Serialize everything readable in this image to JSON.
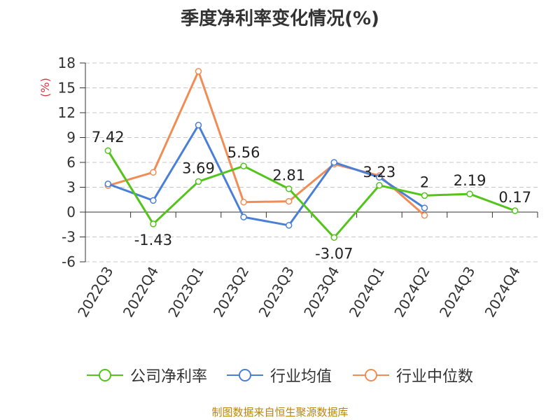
{
  "title": "季度净利率变化情况(%)",
  "source": "制图数据来自恒生聚源数据库",
  "chart_data": {
    "type": "line",
    "title": "季度净利率变化情况(%)",
    "ylabel": "(%)",
    "categories": [
      "2022Q3",
      "2022Q4",
      "2023Q1",
      "2023Q2",
      "2023Q3",
      "2023Q4",
      "2024Q1",
      "2024Q2",
      "2024Q3",
      "2024Q4"
    ],
    "ylim": [
      -6,
      18
    ],
    "yticks": [
      -6,
      -3,
      0,
      3,
      6,
      9,
      12,
      15,
      18
    ],
    "grid": true,
    "legend_position": "bottom",
    "series": [
      {
        "name": "公司净利率",
        "color": "#52c41a",
        "values": [
          7.42,
          -1.43,
          3.69,
          5.56,
          2.81,
          -3.07,
          3.23,
          2,
          2.19,
          0.17
        ],
        "labels": [
          "7.42",
          "-1.43",
          "3.69",
          "5.56",
          "2.81",
          "-3.07",
          "3.23",
          "2",
          "2.19",
          "0.17"
        ]
      },
      {
        "name": "行业均值",
        "color": "#4a7fd8",
        "values": [
          3.4,
          1.4,
          10.5,
          -0.6,
          -1.6,
          6.0,
          4.2,
          0.5,
          null,
          null
        ]
      },
      {
        "name": "行业中位数",
        "color": "#f28c55",
        "values": [
          3.2,
          4.8,
          17.0,
          1.2,
          1.3,
          5.8,
          4.4,
          -0.4,
          null,
          null
        ]
      }
    ]
  }
}
